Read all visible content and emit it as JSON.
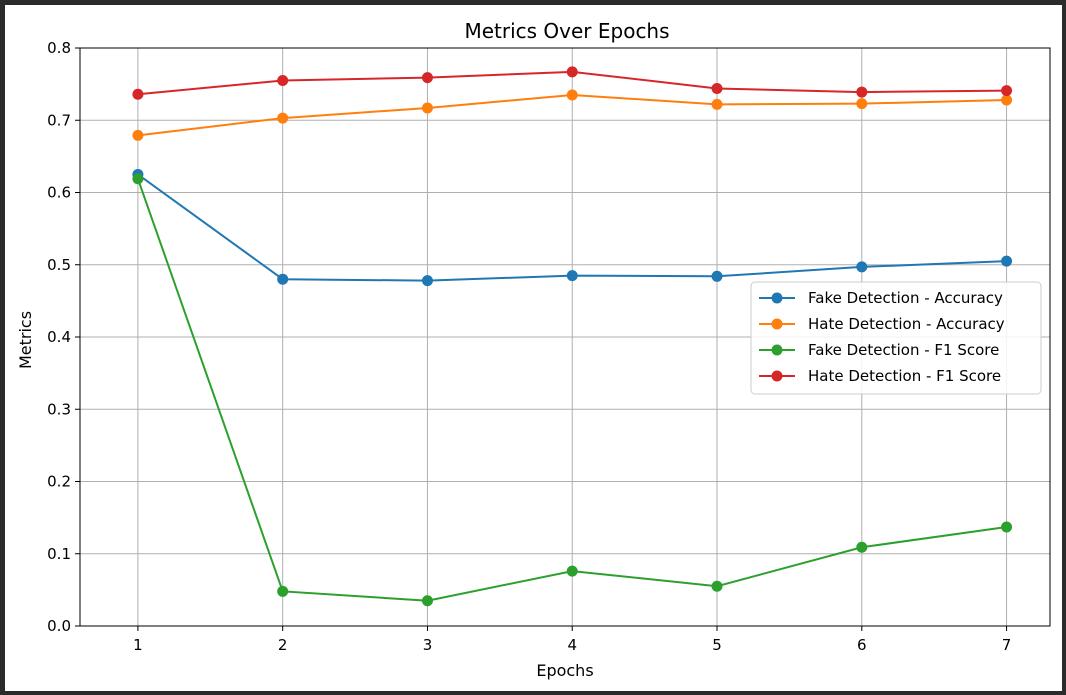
{
  "chart_data": {
    "type": "line",
    "title": "Metrics Over Epochs",
    "xlabel": "Epochs",
    "ylabel": "Metrics",
    "x": [
      1,
      2,
      3,
      4,
      5,
      6,
      7
    ],
    "xlim": [
      0.6,
      7.3
    ],
    "ylim": [
      0.0,
      0.8
    ],
    "xticks": [
      1,
      2,
      3,
      4,
      5,
      6,
      7
    ],
    "yticks": [
      "0.0",
      "0.1",
      "0.2",
      "0.3",
      "0.4",
      "0.5",
      "0.6",
      "0.7",
      "0.8"
    ],
    "grid": true,
    "legend_position": "center-right",
    "series": [
      {
        "name": "Fake Detection - Accuracy",
        "color": "#1f77b4",
        "values": [
          0.625,
          0.48,
          0.478,
          0.485,
          0.484,
          0.497,
          0.505
        ]
      },
      {
        "name": "Hate Detection - Accuracy",
        "color": "#ff7f0e",
        "values": [
          0.679,
          0.703,
          0.717,
          0.735,
          0.722,
          0.723,
          0.728
        ]
      },
      {
        "name": "Fake Detection - F1 Score",
        "color": "#2ca02c",
        "values": [
          0.619,
          0.048,
          0.035,
          0.076,
          0.055,
          0.109,
          0.137
        ]
      },
      {
        "name": "Hate Detection - F1 Score",
        "color": "#d62728",
        "values": [
          0.736,
          0.755,
          0.759,
          0.767,
          0.744,
          0.739,
          0.741
        ]
      }
    ]
  }
}
